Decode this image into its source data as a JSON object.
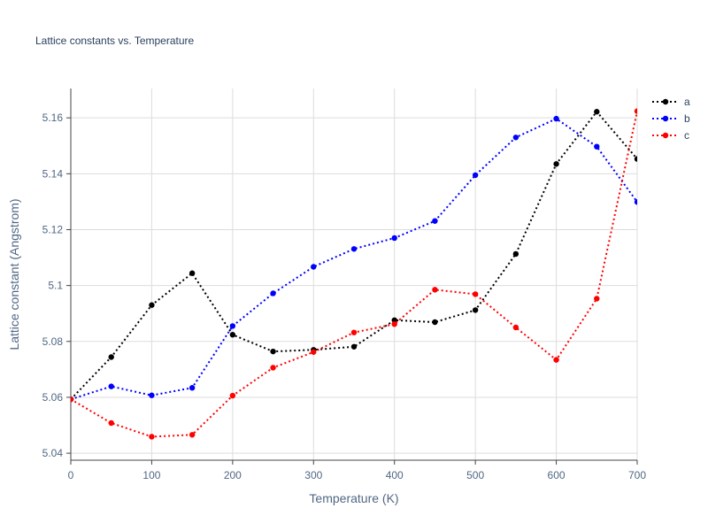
{
  "chart_data": {
    "type": "line",
    "title": "Lattice constants vs. Temperature",
    "xlabel": "Temperature (K)",
    "ylabel": "Lattice constant (Angstrom)",
    "xlim": [
      0,
      700
    ],
    "ylim": [
      5.0375,
      5.1705
    ],
    "x_ticks": [
      0,
      100,
      200,
      300,
      400,
      500,
      600,
      700
    ],
    "x_tick_labels": [
      "0",
      "100",
      "200",
      "300",
      "400",
      "500",
      "600",
      "700"
    ],
    "y_ticks": [
      5.04,
      5.06,
      5.08,
      5.1,
      5.12,
      5.14,
      5.16
    ],
    "y_tick_labels": [
      "5.04",
      "5.06",
      "5.08",
      "5.1",
      "5.12",
      "5.14",
      "5.16"
    ],
    "grid": true,
    "legend_position": "top-right",
    "x": [
      0,
      50,
      100,
      150,
      200,
      250,
      300,
      350,
      400,
      450,
      500,
      550,
      600,
      650,
      700
    ],
    "series": [
      {
        "name": "a",
        "color": "#000000",
        "line_style": "dotted",
        "marker": "circle",
        "values": [
          5.0593,
          5.0744,
          5.093,
          5.1044,
          5.0824,
          5.0764,
          5.077,
          5.0781,
          5.0876,
          5.0869,
          5.0912,
          5.1113,
          5.1435,
          5.1622,
          5.1453
        ]
      },
      {
        "name": "b",
        "color": "#0000ff",
        "line_style": "dotted",
        "marker": "circle",
        "values": [
          5.0593,
          5.0639,
          5.0607,
          5.0634,
          5.0855,
          5.0972,
          5.1067,
          5.1131,
          5.117,
          5.1231,
          5.1395,
          5.153,
          5.1597,
          5.1497,
          5.1299
        ]
      },
      {
        "name": "c",
        "color": "#ff0000",
        "line_style": "dotted",
        "marker": "circle",
        "values": [
          5.0593,
          5.0508,
          5.0459,
          5.0466,
          5.0606,
          5.0706,
          5.0762,
          5.0832,
          5.0862,
          5.0985,
          5.0969,
          5.085,
          5.0734,
          5.0953,
          5.1624
        ]
      }
    ]
  }
}
